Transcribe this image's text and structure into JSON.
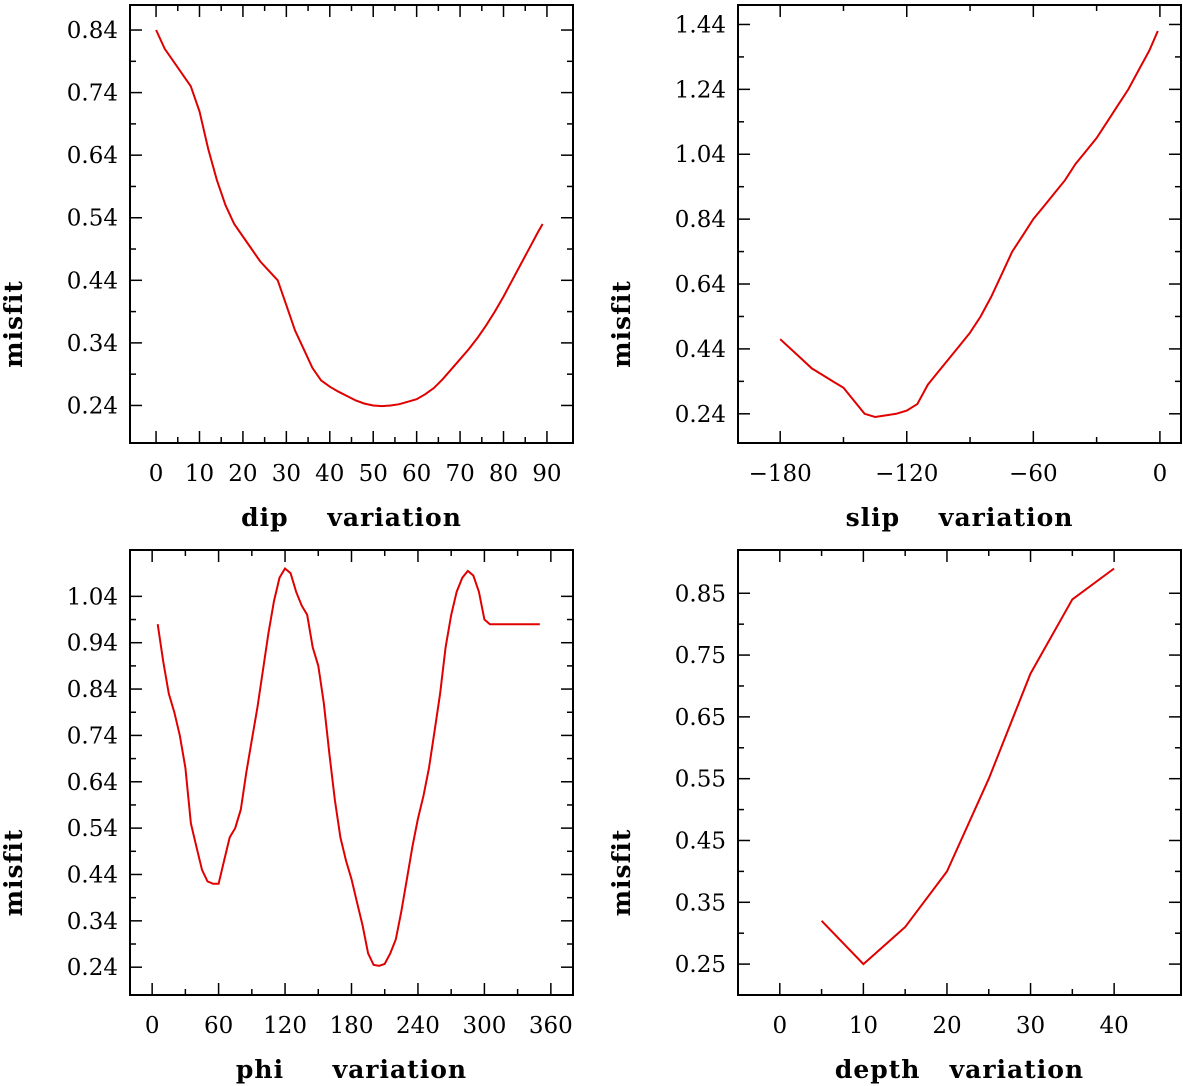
{
  "chart_data": [
    {
      "type": "line",
      "xlabel": "dip    variation",
      "ylabel": "misfit",
      "xlim": [
        -6,
        96
      ],
      "ylim": [
        0.18,
        0.88
      ],
      "xticks": [
        0,
        10,
        20,
        30,
        40,
        50,
        60,
        70,
        80,
        90
      ],
      "xtick_labels": [
        "0",
        "10",
        "20",
        "30",
        "40",
        "50",
        "60",
        "70",
        "80",
        "90"
      ],
      "yticks": [
        0.24,
        0.34,
        0.44,
        0.54,
        0.64,
        0.74,
        0.84
      ],
      "ytick_labels": [
        "0.24",
        "0.34",
        "0.44",
        "0.54",
        "0.64",
        "0.74",
        "0.84"
      ],
      "series": [
        {
          "name": "misfit",
          "color": "#e00000",
          "x": [
            0,
            2,
            5,
            8,
            10,
            12,
            14,
            16,
            18,
            20,
            22,
            24,
            26,
            28,
            30,
            32,
            34,
            36,
            38,
            40,
            42,
            44,
            46,
            48,
            50,
            52,
            54,
            56,
            58,
            60,
            62,
            64,
            66,
            68,
            70,
            72,
            74,
            76,
            78,
            80,
            82,
            84,
            86,
            88,
            89
          ],
          "y": [
            0.84,
            0.81,
            0.78,
            0.75,
            0.71,
            0.65,
            0.6,
            0.56,
            0.53,
            0.51,
            0.49,
            0.47,
            0.455,
            0.44,
            0.4,
            0.36,
            0.33,
            0.3,
            0.28,
            0.27,
            0.262,
            0.255,
            0.248,
            0.243,
            0.24,
            0.239,
            0.24,
            0.242,
            0.246,
            0.25,
            0.258,
            0.268,
            0.282,
            0.298,
            0.314,
            0.33,
            0.348,
            0.368,
            0.39,
            0.414,
            0.44,
            0.466,
            0.492,
            0.518,
            0.53
          ]
        }
      ]
    },
    {
      "type": "line",
      "xlabel": "slip    variation",
      "ylabel": "misfit",
      "xlim": [
        -200,
        10
      ],
      "ylim": [
        0.15,
        1.5
      ],
      "xticks": [
        -180,
        -120,
        -60,
        0
      ],
      "xtick_labels": [
        "−180",
        "−120",
        "−60",
        "0"
      ],
      "yticks": [
        0.24,
        0.44,
        0.64,
        0.84,
        1.04,
        1.24,
        1.44
      ],
      "ytick_labels": [
        "0.24",
        "0.44",
        "0.64",
        "0.84",
        "1.04",
        "1.24",
        "1.44"
      ],
      "series": [
        {
          "name": "misfit",
          "color": "#e00000",
          "x": [
            -180,
            -170,
            -165,
            -160,
            -155,
            -150,
            -145,
            -140,
            -135,
            -130,
            -125,
            -120,
            -115,
            -110,
            -105,
            -100,
            -95,
            -90,
            -85,
            -80,
            -75,
            -70,
            -65,
            -60,
            -55,
            -50,
            -45,
            -40,
            -35,
            -30,
            -25,
            -20,
            -15,
            -10,
            -5,
            -1
          ],
          "y": [
            0.47,
            0.41,
            0.38,
            0.36,
            0.34,
            0.32,
            0.28,
            0.24,
            0.23,
            0.235,
            0.24,
            0.25,
            0.27,
            0.33,
            0.37,
            0.41,
            0.45,
            0.49,
            0.54,
            0.6,
            0.67,
            0.74,
            0.79,
            0.84,
            0.88,
            0.92,
            0.96,
            1.01,
            1.05,
            1.09,
            1.14,
            1.19,
            1.24,
            1.3,
            1.36,
            1.42
          ]
        }
      ]
    },
    {
      "type": "line",
      "xlabel": "phi     variation",
      "ylabel": "misfit",
      "xlim": [
        -20,
        380
      ],
      "ylim": [
        0.18,
        1.14
      ],
      "xticks": [
        0,
        60,
        120,
        180,
        240,
        300,
        360
      ],
      "xtick_labels": [
        "0",
        "60",
        "120",
        "180",
        "240",
        "300",
        "360"
      ],
      "yticks": [
        0.24,
        0.34,
        0.44,
        0.54,
        0.64,
        0.74,
        0.84,
        0.94,
        1.04
      ],
      "ytick_labels": [
        "0.24",
        "0.34",
        "0.44",
        "0.54",
        "0.64",
        "0.74",
        "0.84",
        "0.94",
        "1.04"
      ],
      "series": [
        {
          "name": "misfit",
          "color": "#e00000",
          "x": [
            5,
            10,
            15,
            20,
            25,
            30,
            35,
            40,
            45,
            50,
            55,
            60,
            65,
            70,
            75,
            80,
            85,
            90,
            95,
            100,
            105,
            110,
            115,
            120,
            125,
            130,
            135,
            140,
            145,
            150,
            155,
            160,
            165,
            170,
            175,
            180,
            185,
            190,
            195,
            200,
            205,
            210,
            215,
            220,
            225,
            230,
            235,
            240,
            245,
            250,
            255,
            260,
            265,
            270,
            275,
            280,
            285,
            290,
            295,
            300,
            305,
            310,
            315,
            320,
            325,
            330,
            335,
            340,
            345,
            350
          ],
          "y": [
            0.98,
            0.9,
            0.83,
            0.79,
            0.74,
            0.67,
            0.55,
            0.5,
            0.45,
            0.425,
            0.42,
            0.42,
            0.47,
            0.52,
            0.54,
            0.58,
            0.66,
            0.73,
            0.8,
            0.88,
            0.96,
            1.03,
            1.08,
            1.1,
            1.09,
            1.05,
            1.02,
            1.0,
            0.93,
            0.89,
            0.81,
            0.7,
            0.6,
            0.52,
            0.47,
            0.43,
            0.38,
            0.33,
            0.27,
            0.245,
            0.243,
            0.247,
            0.27,
            0.3,
            0.36,
            0.43,
            0.5,
            0.56,
            0.61,
            0.67,
            0.75,
            0.83,
            0.93,
            1.0,
            1.05,
            1.08,
            1.095,
            1.085,
            1.05,
            0.99,
            0.98,
            0.98,
            0.98,
            0.98,
            0.98,
            0.98,
            0.98,
            0.98,
            0.98,
            0.98
          ]
        }
      ]
    },
    {
      "type": "line",
      "xlabel": "depth   variation",
      "ylabel": "misfit",
      "xlim": [
        -5,
        48
      ],
      "ylim": [
        0.2,
        0.92
      ],
      "xticks": [
        0,
        10,
        20,
        30,
        40
      ],
      "xtick_labels": [
        "0",
        "10",
        "20",
        "30",
        "40"
      ],
      "yticks": [
        0.25,
        0.35,
        0.45,
        0.55,
        0.65,
        0.75,
        0.85
      ],
      "ytick_labels": [
        "0.25",
        "0.35",
        "0.45",
        "0.55",
        "0.65",
        "0.75",
        "0.85"
      ],
      "series": [
        {
          "name": "misfit",
          "color": "#e00000",
          "x": [
            5,
            10,
            15,
            20,
            25,
            30,
            35,
            40
          ],
          "y": [
            0.32,
            0.25,
            0.31,
            0.4,
            0.55,
            0.72,
            0.84,
            0.89
          ]
        }
      ]
    }
  ]
}
